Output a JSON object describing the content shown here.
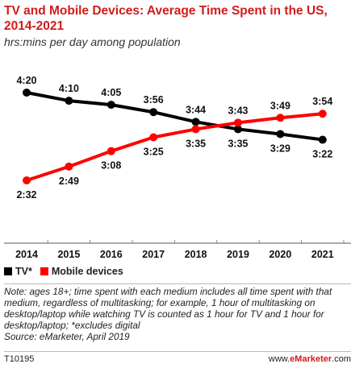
{
  "title": "TV and Mobile Devices: Average Time Spent in the US, 2014-2021",
  "subtitle": "hrs:mins per day among population",
  "chart_data": {
    "type": "line",
    "categories": [
      "2014",
      "2015",
      "2016",
      "2017",
      "2018",
      "2019",
      "2020",
      "2021"
    ],
    "series": [
      {
        "name": "TV*",
        "color": "#000000",
        "values": [
          260,
          250,
          245,
          236,
          224,
          215,
          209,
          202
        ],
        "labels": [
          "4:20",
          "4:10",
          "4:05",
          "3:56",
          "3:44",
          "3:35",
          "3:29",
          "3:22"
        ]
      },
      {
        "name": "Mobile devices",
        "color": "#ff0000",
        "values": [
          152,
          169,
          188,
          205,
          215,
          223,
          229,
          234
        ],
        "labels": [
          "2:32",
          "2:49",
          "3:08",
          "3:25",
          "3:35",
          "3:43",
          "3:49",
          "3:54"
        ]
      }
    ],
    "ylim": [
      130,
      285
    ],
    "grid": false
  },
  "legend": {
    "tv": "TV*",
    "mobile": "Mobile devices"
  },
  "note": "Note: ages 18+; time spent with each medium includes all time spent with that medium, regardless of multitasking; for example, 1 hour of multitasking on desktop/laptop while watching TV is counted as 1 hour for TV and 1 hour for desktop/laptop; *excludes digital",
  "source": "Source: eMarketer, April 2019",
  "footer": {
    "code": "T10195",
    "brand_prefix": "www.",
    "brand_name": "eMarketer",
    "brand_suffix": ".com"
  }
}
